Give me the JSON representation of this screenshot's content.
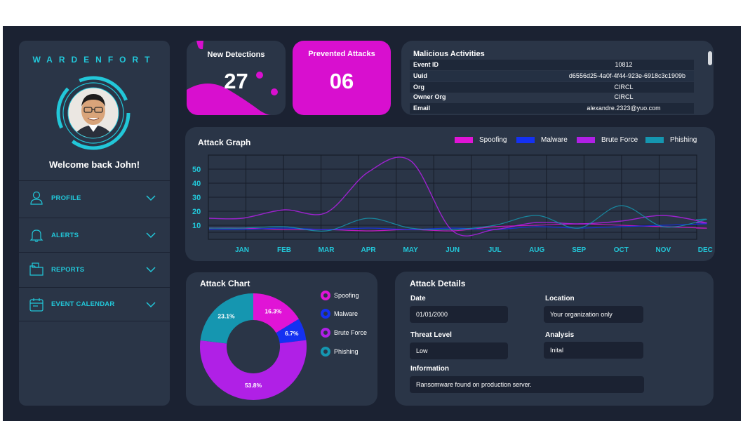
{
  "sidebar": {
    "brand": "WARDENFORT",
    "welcome": "Welcome back John!",
    "items": [
      {
        "label": "PROFILE",
        "icon": "user-icon"
      },
      {
        "label": "ALERTS",
        "icon": "bell-icon"
      },
      {
        "label": "REPORTS",
        "icon": "folder-icon"
      },
      {
        "label": "EVENT CALENDAR",
        "icon": "calendar-icon"
      }
    ]
  },
  "new_detections": {
    "title": "New Detections",
    "value": "27"
  },
  "prevented_attacks": {
    "title": "Prevented Attacks",
    "value": "06"
  },
  "malicious": {
    "title": "Malicious Activities",
    "rows": [
      {
        "key": "Event ID",
        "value": "10812"
      },
      {
        "key": "Uuid",
        "value": "d6556d25-4a0f-4f44-923e-6918c3c1909b"
      },
      {
        "key": "Org",
        "value": "CIRCL"
      },
      {
        "key": "Owner Org",
        "value": "CIRCL"
      },
      {
        "key": "Email",
        "value": "alexandre.2323@yuo.com"
      }
    ]
  },
  "colors": {
    "spoofing": "#e014d6",
    "malware": "#1431f2",
    "brute_force": "#b020e6",
    "phishing": "#1596b0",
    "accent": "#22c7d9"
  },
  "graph": {
    "title": "Attack Graph",
    "legend": [
      "Spoofing",
      "Malware",
      "Brute Force",
      "Phishing"
    ]
  },
  "chart_data": [
    {
      "type": "line",
      "title": "Attack Graph",
      "categories": [
        "JAN",
        "FEB",
        "MAR",
        "APR",
        "MAY",
        "JUN",
        "JUL",
        "AUG",
        "SEP",
        "OCT",
        "NOV",
        "DEC"
      ],
      "yticks": [
        10,
        20,
        30,
        40,
        50
      ],
      "ylim": [
        0,
        60
      ],
      "grid": true,
      "legend_position": "top-right",
      "series": [
        {
          "name": "Spoofing",
          "values": [
            8,
            7,
            7,
            6,
            7,
            6,
            9,
            10,
            11,
            10,
            9,
            8
          ]
        },
        {
          "name": "Malware",
          "values": [
            7,
            8,
            7,
            8,
            7,
            8,
            7,
            9,
            8,
            9,
            10,
            11
          ]
        },
        {
          "name": "Brute Force",
          "values": [
            15,
            21,
            19,
            48,
            56,
            6,
            7,
            12,
            11,
            13,
            17,
            12
          ]
        },
        {
          "name": "Phishing",
          "values": [
            8,
            9,
            6,
            15,
            8,
            7,
            10,
            17,
            8,
            24,
            9,
            14
          ]
        }
      ]
    },
    {
      "type": "pie",
      "title": "Attack Chart",
      "categories": [
        "Spoofing",
        "Malware",
        "Brute Force",
        "Phishing"
      ],
      "values": [
        16.3,
        6.7,
        53.8,
        23.1
      ],
      "labels": [
        "16.3%",
        "6.7%",
        "53.8%",
        "23.1%"
      ]
    }
  ],
  "details": {
    "title": "Attack Details",
    "date_label": "Date",
    "date_value": "01/01/2000",
    "location_label": "Location",
    "location_value": "Your organization only",
    "threat_label": "Threat Level",
    "threat_value": "Low",
    "analysis_label": "Analysis",
    "analysis_value": "Inital",
    "info_label": "Information",
    "info_value": "Ransomware found on production server."
  }
}
